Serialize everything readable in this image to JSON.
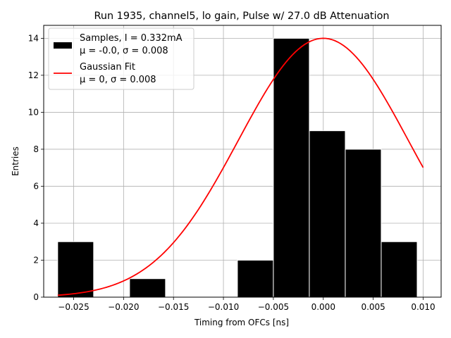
{
  "chart_data": {
    "type": "bar",
    "title": "Run 1935, channel5, lo gain, Pulse w/ 27.0 dB Attenuation",
    "xlabel": "Timing from OFCs [ns]",
    "ylabel": "Entries",
    "xlim": [
      -0.028,
      0.0118
    ],
    "ylim": [
      0,
      14.7
    ],
    "xticks": [
      -0.025,
      -0.02,
      -0.015,
      -0.01,
      -0.005,
      0.0,
      0.005,
      0.01
    ],
    "xtick_labels": [
      "−0.025",
      "−0.020",
      "−0.015",
      "−0.010",
      "−0.005",
      "0.000",
      "0.005",
      "0.010"
    ],
    "yticks": [
      0,
      2,
      4,
      6,
      8,
      10,
      12,
      14
    ],
    "ytick_labels": [
      "0",
      "2",
      "4",
      "6",
      "8",
      "10",
      "12",
      "14"
    ],
    "grid": true,
    "legend_position": "upper-left",
    "histogram": {
      "name": "Samples, I = 0.332mA",
      "name_line2": "μ = -0.0, σ = 0.008",
      "color": "#000000",
      "edgecolor": "#ffffff",
      "bins": [
        {
          "x0": -0.0266,
          "x1": -0.023,
          "count": 3
        },
        {
          "x0": -0.023,
          "x1": -0.0194,
          "count": 0
        },
        {
          "x0": -0.0194,
          "x1": -0.0158,
          "count": 1
        },
        {
          "x0": -0.0158,
          "x1": -0.0122,
          "count": 0
        },
        {
          "x0": -0.0122,
          "x1": -0.0086,
          "count": 0
        },
        {
          "x0": -0.0086,
          "x1": -0.005,
          "count": 2
        },
        {
          "x0": -0.005,
          "x1": -0.0014,
          "count": 14
        },
        {
          "x0": -0.0014,
          "x1": 0.0022,
          "count": 9
        },
        {
          "x0": 0.0022,
          "x1": 0.0058,
          "count": 8
        },
        {
          "x0": 0.0058,
          "x1": 0.0094,
          "count": 3
        }
      ]
    },
    "fit": {
      "name": "Gaussian Fit",
      "name_line2": "μ = 0, σ = 0.008",
      "color": "#ff0000",
      "amplitude": 14,
      "mu": 0.0,
      "sigma": 0.0085,
      "x_range": [
        -0.0266,
        0.01
      ]
    }
  }
}
